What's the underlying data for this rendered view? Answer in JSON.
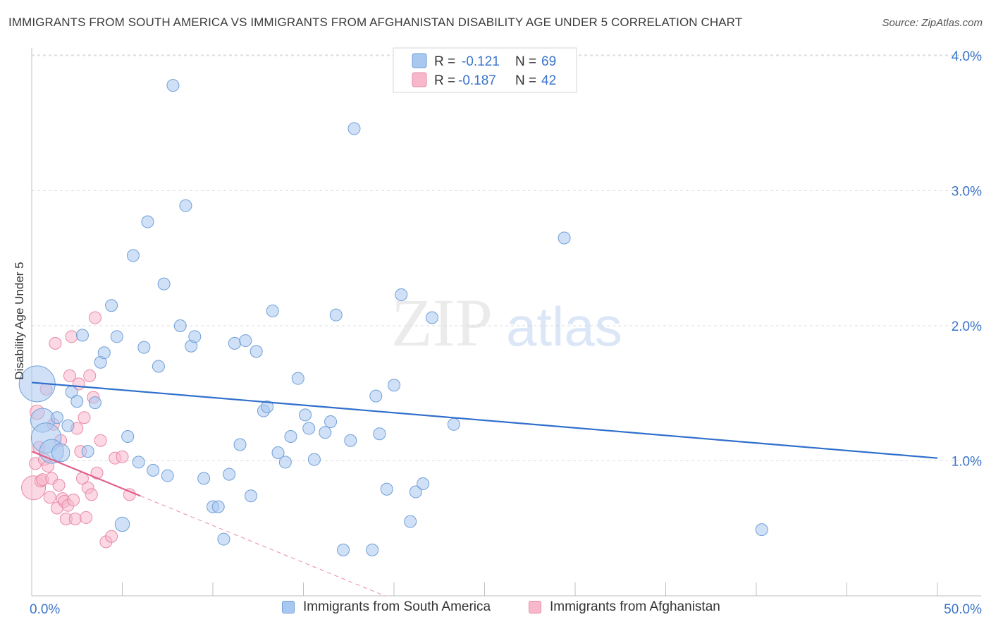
{
  "header": {
    "title": "IMMIGRANTS FROM SOUTH AMERICA VS IMMIGRANTS FROM AFGHANISTAN DISABILITY AGE UNDER 5 CORRELATION CHART",
    "source": "Source: ZipAtlas.com"
  },
  "watermark": {
    "zip": "ZIP",
    "atlas": "atlas"
  },
  "legend": {
    "rows": [
      {
        "r_label": "R =",
        "r_value": "-0.121",
        "n_label": "N =",
        "n_value": "69"
      },
      {
        "r_label": "R =",
        "r_value": "-0.187",
        "n_label": "N =",
        "n_value": "42"
      }
    ]
  },
  "bottom_legend": {
    "south_america": "Immigrants from South America",
    "afghanistan": "Immigrants from Afghanistan"
  },
  "colors": {
    "blue_fill": "#a9c8f0",
    "blue_stroke": "#6f9fd8",
    "blue_line": "#2f6fcc",
    "pink_fill": "#f7b8cc",
    "pink_stroke": "#e98aa8",
    "pink_line": "#e0608a",
    "axis_label": "#3a74c9",
    "grid": "#dcdcdc"
  },
  "chart_data": {
    "type": "scatter",
    "title": "IMMIGRANTS FROM SOUTH AMERICA VS IMMIGRANTS FROM AFGHANISTAN DISABILITY AGE UNDER 5 CORRELATION CHART",
    "ylabel": "Disability Age Under 5",
    "xlabel": "",
    "xlim": [
      0,
      50
    ],
    "ylim": [
      0,
      4.2
    ],
    "x_tick_labels": [
      "0.0%",
      "50.0%"
    ],
    "y_ticks": [
      1.0,
      2.0,
      3.0,
      4.0
    ],
    "y_tick_labels": [
      "1.0%",
      "2.0%",
      "3.0%",
      "4.0%"
    ],
    "series": [
      {
        "name": "Immigrants from South America",
        "color": "blue",
        "points": [
          [
            0.3,
            1.57,
            3
          ],
          [
            0.6,
            1.3,
            2
          ],
          [
            0.8,
            1.17,
            2.5
          ],
          [
            1.1,
            1.07,
            2
          ],
          [
            1.6,
            1.06,
            1.5
          ],
          [
            1.4,
            1.32,
            1
          ],
          [
            2.0,
            1.26,
            1
          ],
          [
            2.2,
            1.51,
            1
          ],
          [
            2.5,
            1.44,
            1
          ],
          [
            2.8,
            1.93,
            1
          ],
          [
            3.1,
            1.07,
            1
          ],
          [
            3.5,
            1.43,
            1
          ],
          [
            3.8,
            1.73,
            1
          ],
          [
            4.0,
            1.8,
            1
          ],
          [
            4.4,
            2.15,
            1
          ],
          [
            4.7,
            1.92,
            1
          ],
          [
            5.3,
            1.18,
            1
          ],
          [
            5.0,
            0.53,
            1.2
          ],
          [
            5.6,
            2.52,
            1
          ],
          [
            5.9,
            0.99,
            1
          ],
          [
            6.2,
            1.84,
            1
          ],
          [
            6.4,
            2.77,
            1
          ],
          [
            6.7,
            0.93,
            1
          ],
          [
            7.0,
            1.7,
            1
          ],
          [
            7.3,
            2.31,
            1
          ],
          [
            7.5,
            0.89,
            1
          ],
          [
            7.8,
            3.78,
            1
          ],
          [
            8.2,
            2.0,
            1
          ],
          [
            8.5,
            2.89,
            1
          ],
          [
            8.8,
            1.85,
            1
          ],
          [
            9.0,
            1.92,
            1
          ],
          [
            9.5,
            0.87,
            1
          ],
          [
            10.0,
            0.66,
            1
          ],
          [
            10.3,
            0.66,
            1
          ],
          [
            10.6,
            0.42,
            1
          ],
          [
            10.9,
            0.9,
            1
          ],
          [
            11.2,
            1.87,
            1
          ],
          [
            11.5,
            1.12,
            1
          ],
          [
            11.8,
            1.89,
            1
          ],
          [
            12.1,
            0.74,
            1
          ],
          [
            12.4,
            1.81,
            1
          ],
          [
            12.8,
            1.37,
            1
          ],
          [
            13.0,
            1.4,
            1
          ],
          [
            13.3,
            2.11,
            1
          ],
          [
            13.6,
            1.06,
            1
          ],
          [
            14.0,
            0.99,
            1
          ],
          [
            14.3,
            1.18,
            1
          ],
          [
            14.7,
            1.61,
            1
          ],
          [
            15.1,
            1.34,
            1
          ],
          [
            15.3,
            1.24,
            1
          ],
          [
            15.6,
            1.01,
            1
          ],
          [
            16.2,
            1.21,
            1
          ],
          [
            16.5,
            1.29,
            1
          ],
          [
            16.8,
            2.08,
            1
          ],
          [
            17.2,
            0.34,
            1
          ],
          [
            17.6,
            1.15,
            1
          ],
          [
            17.8,
            3.46,
            1
          ],
          [
            18.8,
            0.34,
            1
          ],
          [
            19.2,
            1.2,
            1
          ],
          [
            19.0,
            1.48,
            1
          ],
          [
            19.6,
            0.79,
            1
          ],
          [
            20.0,
            1.56,
            1
          ],
          [
            20.4,
            2.23,
            1
          ],
          [
            20.9,
            0.55,
            1
          ],
          [
            21.2,
            0.77,
            1
          ],
          [
            21.6,
            0.83,
            1
          ],
          [
            22.1,
            2.06,
            1
          ],
          [
            23.3,
            1.27,
            1
          ],
          [
            29.4,
            2.65,
            1
          ],
          [
            40.3,
            0.49,
            1
          ]
        ],
        "trend": {
          "x": [
            0,
            50
          ],
          "y": [
            1.58,
            1.02
          ]
        }
      },
      {
        "name": "Immigrants from Afghanistan",
        "color": "pink",
        "points": [
          [
            0.1,
            0.8,
            2
          ],
          [
            0.2,
            0.98,
            1
          ],
          [
            0.3,
            1.36,
            1.2
          ],
          [
            0.4,
            1.1,
            1
          ],
          [
            0.5,
            0.85,
            1
          ],
          [
            0.6,
            0.86,
            1
          ],
          [
            0.7,
            1.01,
            1
          ],
          [
            0.8,
            1.53,
            1
          ],
          [
            0.9,
            0.96,
            1
          ],
          [
            1.0,
            0.73,
            1
          ],
          [
            1.1,
            0.87,
            1
          ],
          [
            1.2,
            1.27,
            1
          ],
          [
            1.3,
            1.87,
            1
          ],
          [
            1.4,
            0.65,
            1
          ],
          [
            1.5,
            0.82,
            1
          ],
          [
            1.6,
            1.15,
            1
          ],
          [
            1.7,
            0.72,
            1
          ],
          [
            1.8,
            0.7,
            1
          ],
          [
            1.9,
            0.57,
            1
          ],
          [
            2.0,
            0.67,
            1
          ],
          [
            2.1,
            1.63,
            1
          ],
          [
            2.2,
            1.92,
            1
          ],
          [
            2.3,
            0.71,
            1
          ],
          [
            2.4,
            0.57,
            1
          ],
          [
            2.5,
            1.24,
            1
          ],
          [
            2.6,
            1.57,
            1
          ],
          [
            2.7,
            1.07,
            1
          ],
          [
            2.8,
            0.87,
            1
          ],
          [
            2.9,
            1.32,
            1
          ],
          [
            3.0,
            0.58,
            1
          ],
          [
            3.1,
            0.8,
            1
          ],
          [
            3.2,
            1.63,
            1
          ],
          [
            3.3,
            0.75,
            1
          ],
          [
            3.4,
            1.47,
            1
          ],
          [
            3.5,
            2.06,
            1
          ],
          [
            3.6,
            0.91,
            1
          ],
          [
            3.8,
            1.15,
            1
          ],
          [
            4.1,
            0.4,
            1
          ],
          [
            4.4,
            0.44,
            1
          ],
          [
            4.6,
            1.02,
            1
          ],
          [
            5.0,
            1.03,
            1
          ],
          [
            5.4,
            0.75,
            1
          ]
        ],
        "trend": {
          "x": [
            0,
            6.0
          ],
          "y": [
            1.07,
            0.74
          ]
        },
        "trend_extension": {
          "x": [
            6.0,
            19.5
          ],
          "y": [
            0.74,
            0.0
          ]
        }
      }
    ]
  }
}
